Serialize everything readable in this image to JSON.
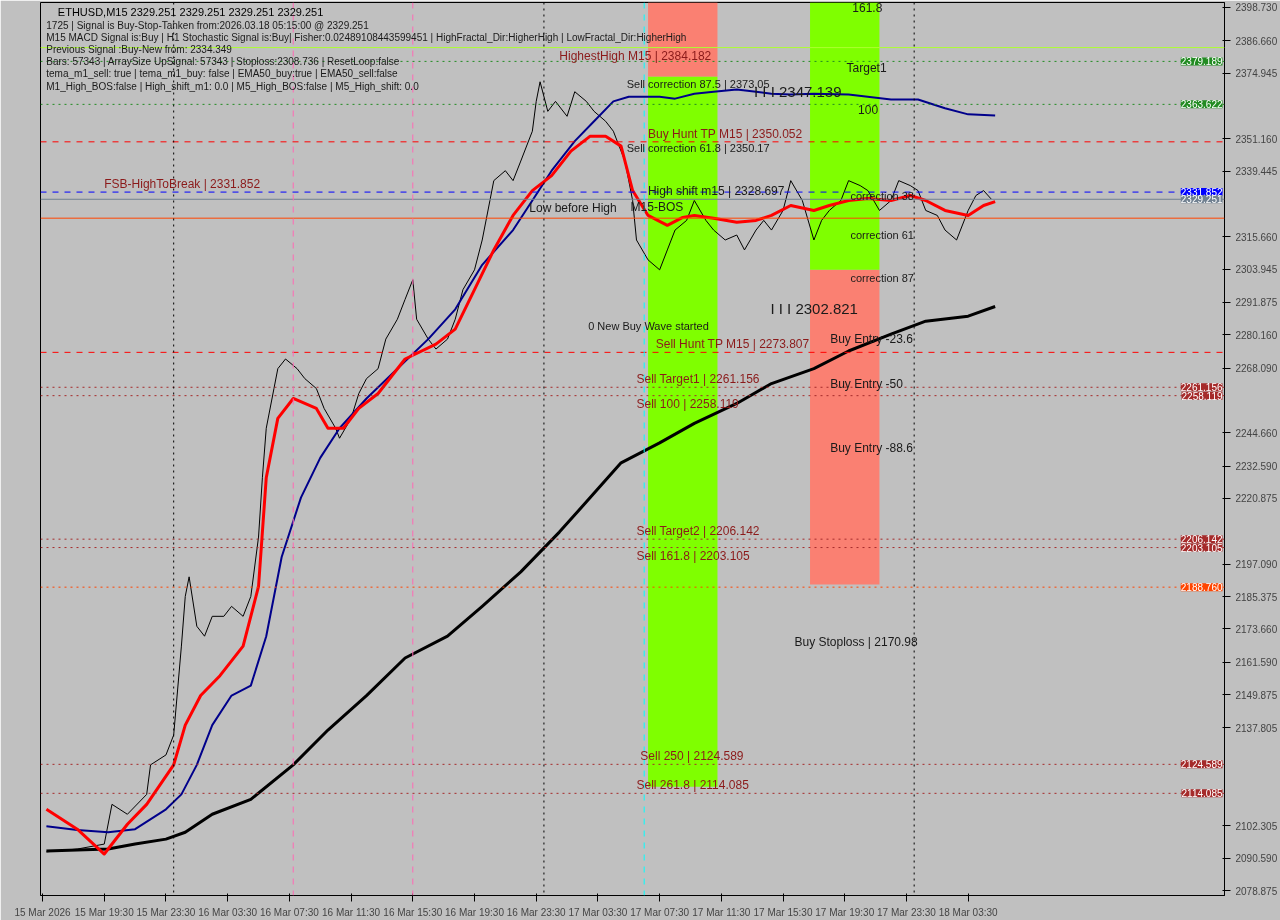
{
  "chart_data": {
    "type": "line",
    "title": "ETHUSD,M15  2329.251 2329.251 2329.251 2329.251",
    "xlim": [
      "2026-03-15T15:22",
      "2026-03-18T20:07"
    ],
    "ylim": [
      2077.08,
      2400.52
    ],
    "xticks": [
      {
        "value": "2026-03-15T15:30",
        "label": "15 Mar 2026"
      },
      {
        "value": "2026-03-15T19:30",
        "label": "15 Mar 19:30"
      },
      {
        "value": "2026-03-15T23:30",
        "label": "15 Mar 23:30"
      },
      {
        "value": "2026-03-16T03:30",
        "label": "16 Mar 03:30"
      },
      {
        "value": "2026-03-16T07:30",
        "label": "16 Mar 07:30"
      },
      {
        "value": "2026-03-16T11:30",
        "label": "16 Mar 11:30"
      },
      {
        "value": "2026-03-16T15:30",
        "label": "16 Mar 15:30"
      },
      {
        "value": "2026-03-16T19:30",
        "label": "16 Mar 19:30"
      },
      {
        "value": "2026-03-16T23:30",
        "label": "16 Mar 23:30"
      },
      {
        "value": "2026-03-17T03:30",
        "label": "17 Mar 03:30"
      },
      {
        "value": "2026-03-17T07:30",
        "label": "17 Mar 07:30"
      },
      {
        "value": "2026-03-17T11:30",
        "label": "17 Mar 11:30"
      },
      {
        "value": "2026-03-17T15:30",
        "label": "17 Mar 15:30"
      },
      {
        "value": "2026-03-17T19:30",
        "label": "17 Mar 19:30"
      },
      {
        "value": "2026-03-17T23:30",
        "label": "17 Mar 23:30"
      },
      {
        "value": "2026-03-18T03:30",
        "label": "18 Mar 03:30"
      }
    ],
    "yticks": [
      {
        "value": 2078.875,
        "label": "2078.875"
      },
      {
        "value": 2090.59,
        "label": "2090.590"
      },
      {
        "value": 2102.305,
        "label": "2102.305"
      },
      {
        "value": 2137.805,
        "label": "2137.805"
      },
      {
        "value": 2149.875,
        "label": "2149.875"
      },
      {
        "value": 2161.59,
        "label": "2161.590"
      },
      {
        "value": 2173.66,
        "label": "2173.660"
      },
      {
        "value": 2185.375,
        "label": "2185.375"
      },
      {
        "value": 2197.09,
        "label": "2197.090"
      },
      {
        "value": 2220.875,
        "label": "2220.875"
      },
      {
        "value": 2232.59,
        "label": "2232.590"
      },
      {
        "value": 2244.66,
        "label": "2244.660"
      },
      {
        "value": 2268.09,
        "label": "2268.090"
      },
      {
        "value": 2280.16,
        "label": "2280.160"
      },
      {
        "value": 2291.875,
        "label": "2291.875"
      },
      {
        "value": 2303.945,
        "label": "2303.945"
      },
      {
        "value": 2315.66,
        "label": "2315.660"
      },
      {
        "value": 2339.445,
        "label": "2339.445"
      },
      {
        "value": 2351.16,
        "label": "2351.160"
      },
      {
        "value": 2374.945,
        "label": "2374.945"
      },
      {
        "value": 2386.66,
        "label": "2386.660"
      },
      {
        "value": 2398.73,
        "label": "2398.730"
      }
    ],
    "grid": false,
    "series": [
      {
        "type": "bar",
        "colors": [
          "#fa8072",
          "#fa8072"
        ],
        "x": [
          "2026-03-17T09:00",
          "2026-03-17T19:30"
        ],
        "base": [
          2373.6,
          2189.7
        ],
        "values": [
          26.9,
          114.0
        ]
      },
      {
        "type": "bar",
        "colors": [
          "#7fff00",
          "#7fff00"
        ],
        "x": [
          "2026-03-17T09:00",
          "2026-03-17T19:30"
        ],
        "base": [
          2206.9,
          2303.7
        ],
        "values": [
          166.7,
          96.8
        ]
      },
      {
        "type": "bar",
        "colors": [
          "#7fff00"
        ],
        "x": [
          "2026-03-17T09:00"
        ],
        "base": [
          2116.5
        ],
        "values": [
          90.4
        ]
      },
      {
        "color": "#000000",
        "x": [
          "2026-03-15T15:45",
          "2026-03-15T17:45",
          "2026-03-15T19:30",
          "2026-03-15T20:00",
          "2026-03-15T21:00",
          "2026-03-15T22:15",
          "2026-03-15T22:30",
          "2026-03-15T23:30",
          "2026-03-16T00:00",
          "2026-03-16T00:30",
          "2026-03-16T00:45",
          "2026-03-16T01:00",
          "2026-03-16T01:30",
          "2026-03-16T02:00",
          "2026-03-16T02:30",
          "2026-03-16T03:15",
          "2026-03-16T03:45",
          "2026-03-16T04:30",
          "2026-03-16T05:00",
          "2026-03-16T05:30",
          "2026-03-16T05:45",
          "2026-03-16T06:00",
          "2026-03-16T06:30",
          "2026-03-16T06:45",
          "2026-03-16T07:15",
          "2026-03-16T08:00",
          "2026-03-16T08:30",
          "2026-03-16T09:15",
          "2026-03-16T09:45",
          "2026-03-16T10:30",
          "2026-03-16T10:45",
          "2026-03-16T11:30",
          "2026-03-16T12:00",
          "2026-03-16T12:30",
          "2026-03-16T13:15",
          "2026-03-16T13:45",
          "2026-03-16T14:30",
          "2026-03-16T15:00",
          "2026-03-16T15:30",
          "2026-03-16T15:45",
          "2026-03-16T16:30",
          "2026-03-16T17:00",
          "2026-03-16T17:45",
          "2026-03-16T18:15",
          "2026-03-16T18:45",
          "2026-03-16T19:30",
          "2026-03-16T20:00",
          "2026-03-16T20:30",
          "2026-03-16T20:45",
          "2026-03-16T21:30",
          "2026-03-16T22:00",
          "2026-03-16T22:30",
          "2026-03-16T23:15",
          "2026-03-16T23:30",
          "2026-03-16T23:45",
          "2026-03-17T00:15",
          "2026-03-17T00:45",
          "2026-03-17T01:30",
          "2026-03-17T02:00",
          "2026-03-17T02:45",
          "2026-03-17T03:15",
          "2026-03-17T04:00",
          "2026-03-17T04:30",
          "2026-03-17T05:15",
          "2026-03-17T05:45",
          "2026-03-17T06:00",
          "2026-03-17T06:45",
          "2026-03-17T07:30",
          "2026-03-17T08:00",
          "2026-03-17T08:30",
          "2026-03-17T09:15",
          "2026-03-17T09:45",
          "2026-03-17T10:30",
          "2026-03-17T11:00",
          "2026-03-17T11:45",
          "2026-03-17T12:30",
          "2026-03-17T13:00",
          "2026-03-17T13:45",
          "2026-03-17T14:15",
          "2026-03-17T14:45",
          "2026-03-17T15:30",
          "2026-03-17T16:00",
          "2026-03-17T16:45",
          "2026-03-17T17:30",
          "2026-03-17T18:00",
          "2026-03-17T18:30",
          "2026-03-17T19:15",
          "2026-03-17T19:45",
          "2026-03-17T20:30",
          "2026-03-17T21:00",
          "2026-03-17T21:45",
          "2026-03-17T22:30",
          "2026-03-17T23:00",
          "2026-03-17T23:45",
          "2026-03-18T00:15",
          "2026-03-18T00:45",
          "2026-03-18T01:30",
          "2026-03-18T02:00",
          "2026-03-18T02:45",
          "2026-03-18T03:30",
          "2026-03-18T04:00",
          "2026-03-18T04:30",
          "2026-03-18T05:00"
        ],
        "values": [
          2092.9,
          2093.9,
          2095.7,
          2110.1,
          2106.5,
          2113.7,
          2124.4,
          2128.0,
          2135.2,
          2167.4,
          2185.4,
          2192.5,
          2174.6,
          2171.0,
          2178.2,
          2178.2,
          2181.8,
          2178.2,
          2185.4,
          2206.9,
          2228.4,
          2246.3,
          2260.7,
          2267.9,
          2271.4,
          2267.9,
          2264.3,
          2260.7,
          2253.5,
          2246.3,
          2242.7,
          2249.9,
          2258.9,
          2264.3,
          2267.9,
          2278.6,
          2285.8,
          2293.0,
          2300.1,
          2285.8,
          2278.6,
          2275.0,
          2278.6,
          2285.8,
          2296.5,
          2303.7,
          2314.5,
          2328.8,
          2336.0,
          2339.6,
          2336.0,
          2343.1,
          2353.9,
          2364.7,
          2371.8,
          2361.1,
          2364.7,
          2359.3,
          2368.2,
          2364.7,
          2361.1,
          2357.5,
          2353.9,
          2343.1,
          2328.8,
          2314.5,
          2307.3,
          2303.7,
          2310.9,
          2318.1,
          2321.6,
          2328.8,
          2321.6,
          2318.1,
          2314.5,
          2316.3,
          2310.9,
          2318.1,
          2321.6,
          2318.1,
          2325.2,
          2336.0,
          2328.8,
          2314.5,
          2321.6,
          2325.2,
          2328.8,
          2336.0,
          2334.2,
          2332.4,
          2325.2,
          2328.8,
          2336.0,
          2334.2,
          2332.4,
          2325.2,
          2323.4,
          2318.1,
          2314.5,
          2325.2,
          2330.6,
          2332.4,
          2329.3
        ]
      },
      {
        "color": "#000000",
        "x": [
          "2026-03-15T15:45",
          "2026-03-15T19:45",
          "2026-03-15T21:30",
          "2026-03-15T23:30",
          "2026-03-16T00:45",
          "2026-03-16T02:30",
          "2026-03-16T05:00",
          "2026-03-16T07:45",
          "2026-03-16T10:00",
          "2026-03-16T12:30",
          "2026-03-16T15:00",
          "2026-03-16T17:45",
          "2026-03-16T20:00",
          "2026-03-16T22:30",
          "2026-03-17T01:00",
          "2026-03-17T03:00",
          "2026-03-17T05:00",
          "2026-03-17T07:30",
          "2026-03-17T09:45",
          "2026-03-17T12:30",
          "2026-03-17T14:45",
          "2026-03-17T17:30",
          "2026-03-17T19:45",
          "2026-03-17T22:30",
          "2026-03-18T00:45",
          "2026-03-18T03:30",
          "2026-03-18T05:15"
        ],
        "values": [
          2093.2,
          2093.9,
          2095.7,
          2097.5,
          2100.0,
          2106.5,
          2111.9,
          2124.4,
          2137.0,
          2149.5,
          2163.1,
          2171.0,
          2181.8,
          2194.3,
          2208.7,
          2221.2,
          2233.8,
          2241.0,
          2248.1,
          2255.3,
          2262.5,
          2267.9,
          2274.3,
          2280.4,
          2285.1,
          2286.9,
          2290.4
        ]
      },
      {
        "color": "#00008b",
        "x": [
          "2026-03-15T15:45",
          "2026-03-15T17:45",
          "2026-03-15T19:45",
          "2026-03-15T21:30",
          "2026-03-15T23:30",
          "2026-03-16T00:30",
          "2026-03-16T01:30",
          "2026-03-16T02:30",
          "2026-03-16T03:45",
          "2026-03-16T05:00",
          "2026-03-16T06:00",
          "2026-03-16T07:00",
          "2026-03-16T08:15",
          "2026-03-16T09:30",
          "2026-03-16T10:45",
          "2026-03-16T12:30",
          "2026-03-16T14:30",
          "2026-03-16T16:30",
          "2026-03-16T18:15",
          "2026-03-16T20:00",
          "2026-03-16T22:00",
          "2026-03-16T23:15",
          "2026-03-17T00:30",
          "2026-03-17T02:00",
          "2026-03-17T03:15",
          "2026-03-17T04:30",
          "2026-03-17T05:30",
          "2026-03-17T07:30",
          "2026-03-17T08:30",
          "2026-03-17T09:45",
          "2026-03-17T11:00",
          "2026-03-17T12:30",
          "2026-03-17T13:45",
          "2026-03-17T14:45",
          "2026-03-17T16:00",
          "2026-03-17T17:30",
          "2026-03-17T19:45",
          "2026-03-17T22:30",
          "2026-03-18T00:15",
          "2026-03-18T02:00",
          "2026-03-18T03:30",
          "2026-03-18T05:15"
        ],
        "values": [
          2102.2,
          2100.8,
          2100.0,
          2101.1,
          2108.3,
          2113.7,
          2124.4,
          2138.8,
          2149.5,
          2153.1,
          2171.0,
          2199.7,
          2221.2,
          2235.6,
          2246.3,
          2257.1,
          2267.9,
          2278.6,
          2289.4,
          2305.5,
          2318.1,
          2328.8,
          2339.6,
          2350.3,
          2357.5,
          2364.7,
          2366.4,
          2366.4,
          2365.7,
          2367.5,
          2368.2,
          2369.0,
          2368.2,
          2367.5,
          2367.2,
          2367.5,
          2367.2,
          2365.4,
          2365.4,
          2362.2,
          2360.0,
          2359.6
        ]
      },
      {
        "color": "#ff0000",
        "x": [
          "2026-03-15T15:45",
          "2026-03-15T17:45",
          "2026-03-15T19:30",
          "2026-03-15T21:00",
          "2026-03-15T22:15",
          "2026-03-16T00:00",
          "2026-03-16T00:45",
          "2026-03-16T01:45",
          "2026-03-16T03:00",
          "2026-03-16T04:30",
          "2026-03-16T05:30",
          "2026-03-16T06:00",
          "2026-03-16T06:45",
          "2026-03-16T07:45",
          "2026-03-16T09:15",
          "2026-03-16T10:00",
          "2026-03-16T11:00",
          "2026-03-16T12:00",
          "2026-03-16T13:15",
          "2026-03-16T15:00",
          "2026-03-16T17:00",
          "2026-03-16T18:15",
          "2026-03-16T19:30",
          "2026-03-16T20:45",
          "2026-03-16T22:00",
          "2026-03-16T23:15",
          "2026-03-17T00:30",
          "2026-03-17T01:45",
          "2026-03-17T03:00",
          "2026-03-17T04:00",
          "2026-03-17T05:00",
          "2026-03-17T05:45",
          "2026-03-17T06:45",
          "2026-03-17T08:00",
          "2026-03-17T09:00",
          "2026-03-17T09:45",
          "2026-03-17T11:00",
          "2026-03-17T12:30",
          "2026-03-17T13:45",
          "2026-03-17T14:45",
          "2026-03-17T16:00",
          "2026-03-17T17:30",
          "2026-03-17T18:30",
          "2026-03-17T19:45",
          "2026-03-17T21:00",
          "2026-03-17T22:30",
          "2026-03-17T23:45",
          "2026-03-18T00:45",
          "2026-03-18T02:00",
          "2026-03-18T03:30",
          "2026-03-18T04:30",
          "2026-03-18T05:15"
        ],
        "values": [
          2108.3,
          2101.1,
          2092.1,
          2102.9,
          2110.1,
          2124.4,
          2138.8,
          2149.5,
          2156.7,
          2167.4,
          2189.0,
          2228.4,
          2249.9,
          2257.1,
          2253.5,
          2246.3,
          2246.3,
          2253.5,
          2258.9,
          2271.4,
          2276.8,
          2282.2,
          2296.5,
          2310.9,
          2323.4,
          2332.4,
          2337.8,
          2346.7,
          2352.1,
          2352.1,
          2348.5,
          2332.4,
          2323.4,
          2319.8,
          2322.7,
          2323.4,
          2322.4,
          2320.9,
          2321.6,
          2323.4,
          2327.0,
          2325.2,
          2327.0,
          2328.8,
          2329.5,
          2328.8,
          2330.6,
          2328.8,
          2325.2,
          2323.4,
          2327.0,
          2328.4
        ]
      }
    ],
    "ref_lines": [
      {
        "axis": "y",
        "value": 2384.182,
        "label": null,
        "color": "#adff2f",
        "line_style": "solid"
      },
      {
        "axis": "y",
        "value": 2379.189,
        "label": "2379.189",
        "color": "#228b22",
        "line_style": "dotted"
      },
      {
        "axis": "y",
        "value": 2363.622,
        "label": "2363.622",
        "color": "#228b22",
        "line_style": "dotted"
      },
      {
        "axis": "y",
        "value": 2350.052,
        "label": null,
        "color": "#ff0000",
        "line_style": "dashed"
      },
      {
        "axis": "y",
        "value": 2331.852,
        "label": "2331.852",
        "color": "#0000ff",
        "line_style": "dashed"
      },
      {
        "axis": "y",
        "value": 2329.251,
        "label": "2329.251",
        "color": "#708090",
        "line_style": "solid"
      },
      {
        "axis": "y",
        "value": 2322.4,
        "label": null,
        "color": "#ff4500",
        "line_style": "solid"
      },
      {
        "axis": "y",
        "value": 2273.807,
        "label": null,
        "color": "#ff0000",
        "line_style": "dashed"
      },
      {
        "axis": "y",
        "value": 2261.156,
        "label": "2261.156",
        "color": "#a52a2a",
        "line_style": "dotted"
      },
      {
        "axis": "y",
        "value": 2258.119,
        "label": "2258.119",
        "color": "#a52a2a",
        "line_style": "dotted"
      },
      {
        "axis": "y",
        "value": 2206.142,
        "label": "2206.142",
        "color": "#a52a2a",
        "line_style": "dotted"
      },
      {
        "axis": "y",
        "value": 2203.105,
        "label": "2203.105",
        "color": "#a52a2a",
        "line_style": "dotted"
      },
      {
        "axis": "y",
        "value": 2188.76,
        "label": "2188.760",
        "color": "#ff4500",
        "line_style": "dotted"
      },
      {
        "axis": "y",
        "value": 2124.589,
        "label": "2124.589",
        "color": "#a52a2a",
        "line_style": "dotted"
      },
      {
        "axis": "y",
        "value": 2114.085,
        "label": "2114.085",
        "color": "#a52a2a",
        "line_style": "dotted"
      },
      {
        "axis": "x",
        "value": "2026-03-16T00:00",
        "label": null,
        "color": "#000000",
        "line_style": "dotted"
      },
      {
        "axis": "x",
        "value": "2026-03-17T00:00",
        "label": null,
        "color": "#000000",
        "line_style": "dotted"
      },
      {
        "axis": "x",
        "value": "2026-03-18T00:00",
        "label": null,
        "color": "#000000",
        "line_style": "dotted"
      },
      {
        "axis": "x",
        "value": "2026-03-16T07:45",
        "label": null,
        "color": "#ff69b4",
        "line_style": "dashed"
      },
      {
        "axis": "x",
        "value": "2026-03-16T15:30",
        "label": null,
        "color": "#ff69b4",
        "line_style": "dashed"
      },
      {
        "axis": "x",
        "value": "2026-03-17T06:30",
        "label": null,
        "color": "#00ffff",
        "line_style": "dashed"
      }
    ],
    "annotations": [
      "1725 | Signal is Buy-Stop-Tanken from:2026.03.18 05:15:00 @ 2329.251",
      "M15 MACD Signal is:Buy | H1 Stochastic Signal is:Buy| Fisher:0.02489108443599451 | HighFractal_Dir:HigherHigh | LowFractal_Dir:HigherHigh",
      "Previous Signal :Buy-New from: 2334.349",
      "Bars: 57343 | ArraySize UpSignal: 57343 | Stoploss:2308.736 | ResetLoop:false",
      "tema_m1_sell: true | tema_m1_buy: false | EMA50_buy:true | EMA50_sell:false",
      "M1_High_BOS:false | High_shift_m1: 0.0 | M5_High_BOS:false | M5_High_shift: 0.0",
      "Low before High",
      "M15-BOS",
      "Sell correction 87.5 | 2373.05",
      "I I I 2347.139",
      "Target1",
      "161.8",
      "100",
      "Sell correction 61.8 | 2350.17",
      "High shift m15 | 2328.697",
      "correction 38",
      "correction 61",
      "correction 87",
      "I I I 2302.821",
      "0 New Buy Wave started",
      "Buy Entry -23.6",
      "Buy Entry -50",
      "Buy Entry -88.6",
      "Buy Stoploss | 2170.98",
      {
        "text": "FSB-HighToBreak | 2331.852",
        "x": "2026-03-15T19:30",
        "y": 2331.852
      },
      {
        "text": "HighestHigh  M15 | 2384.182",
        "x": "2026-03-17T01:00",
        "y": 2384.182
      },
      {
        "text": "Buy Hunt TP M15 | 2350.052",
        "x": "2026-03-17T06:45",
        "y": 2350.052
      },
      {
        "text": "Sell Hunt TP M15 | 2273.807",
        "x": "2026-03-17T07:15",
        "y": 2273.807
      },
      {
        "text": "Sell Target1 | 2261.156",
        "x": "2026-03-17T06:00",
        "y": 2261.156
      },
      {
        "text": "Sell 100 | 2258.119",
        "x": "2026-03-17T06:00",
        "y": 2258.119
      },
      {
        "text": "Sell Target2 | 2206.142",
        "x": "2026-03-17T06:00",
        "y": 2206.142
      },
      {
        "text": "Sell 161.8 | 2203.105",
        "x": "2026-03-17T06:00",
        "y": 2203.105
      },
      {
        "text": "Sell  250 | 2124.589",
        "x": "2026-03-17T06:15",
        "y": 2124.589
      },
      {
        "text": "Sell  261.8 | 2114.085",
        "x": "2026-03-17T06:00",
        "y": 2114.085
      }
    ]
  }
}
